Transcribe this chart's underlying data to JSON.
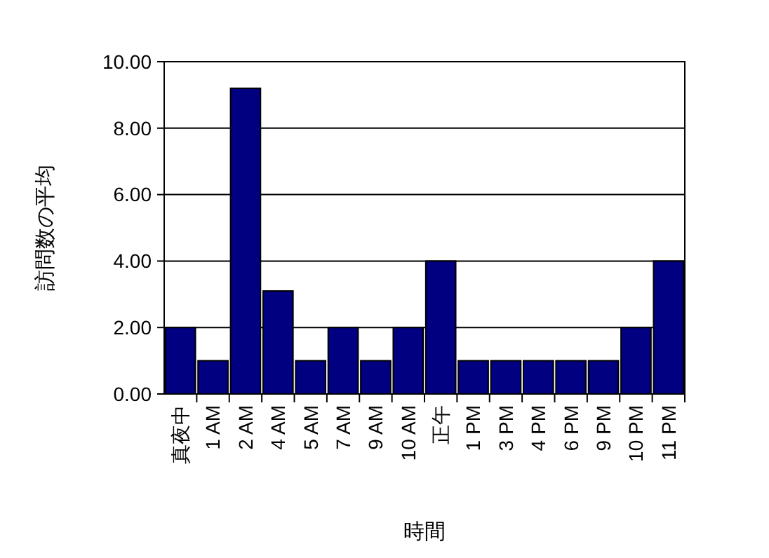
{
  "chart_data": {
    "type": "bar",
    "xlabel": "時間",
    "ylabel": "訪問数の平均",
    "categories": [
      "真夜中",
      "1 AM",
      "2 AM",
      "4 AM",
      "5 AM",
      "7 AM",
      "9 AM",
      "10 AM",
      "正午",
      "1 PM",
      "3 PM",
      "4 PM",
      "6 PM",
      "9 PM",
      "10 PM",
      "11 PM"
    ],
    "values": [
      2,
      1,
      9.2,
      3.1,
      1,
      2,
      1,
      2,
      4,
      1,
      1,
      1,
      1,
      1,
      2,
      4
    ],
    "color": "#000080",
    "ylim": [
      0,
      10
    ],
    "yticks": [
      {
        "value": 0,
        "label": "0.00"
      },
      {
        "value": 2,
        "label": "2.00"
      },
      {
        "value": 4,
        "label": "4.00"
      },
      {
        "value": 6,
        "label": "6.00"
      },
      {
        "value": 8,
        "label": "8.00"
      },
      {
        "value": 10,
        "label": "10.00"
      }
    ],
    "grid": "y"
  }
}
